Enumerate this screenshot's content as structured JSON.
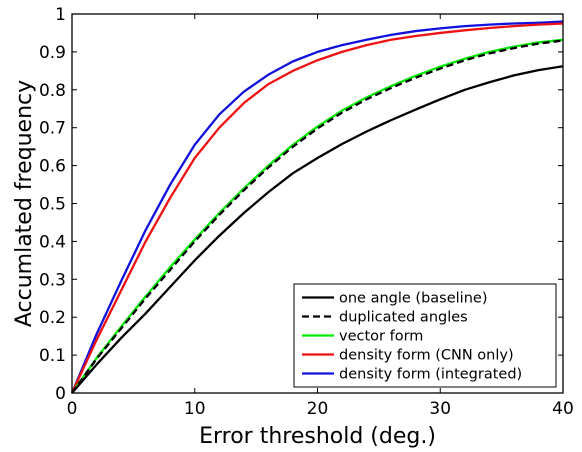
{
  "chart_data": {
    "type": "line",
    "title": "",
    "xlabel": "Error threshold (deg.)",
    "ylabel": "Accumlated frequency",
    "xlim": [
      0,
      40
    ],
    "ylim": [
      0,
      1
    ],
    "xticks": [
      0,
      10,
      20,
      30,
      40
    ],
    "yticks": [
      0,
      0.1,
      0.2,
      0.3,
      0.4,
      0.5,
      0.6,
      0.7,
      0.8,
      0.9,
      1
    ],
    "grid": false,
    "legend_position": "bottom-right",
    "series": [
      {
        "name": "one angle (baseline)",
        "color": "#000000",
        "dash": "solid",
        "x": [
          0,
          2,
          4,
          6,
          8,
          10,
          12,
          14,
          16,
          18,
          20,
          22,
          24,
          26,
          28,
          30,
          32,
          34,
          36,
          38,
          40
        ],
        "y": [
          0,
          0.075,
          0.145,
          0.21,
          0.28,
          0.35,
          0.415,
          0.475,
          0.53,
          0.58,
          0.62,
          0.657,
          0.69,
          0.72,
          0.748,
          0.775,
          0.8,
          0.82,
          0.838,
          0.852,
          0.862
        ]
      },
      {
        "name": "duplicated angles",
        "color": "#000000",
        "dash": "dashed",
        "x": [
          0,
          2,
          4,
          6,
          8,
          10,
          12,
          14,
          16,
          18,
          20,
          22,
          24,
          26,
          28,
          30,
          32,
          34,
          36,
          38,
          40
        ],
        "y": [
          0,
          0.09,
          0.17,
          0.25,
          0.325,
          0.4,
          0.47,
          0.535,
          0.595,
          0.65,
          0.698,
          0.74,
          0.775,
          0.805,
          0.832,
          0.856,
          0.878,
          0.896,
          0.91,
          0.922,
          0.93
        ]
      },
      {
        "name": "vector form",
        "color": "#00ee00",
        "dash": "solid",
        "x": [
          0,
          2,
          4,
          6,
          8,
          10,
          12,
          14,
          16,
          18,
          20,
          22,
          24,
          26,
          28,
          30,
          32,
          34,
          36,
          38,
          40
        ],
        "y": [
          0,
          0.092,
          0.175,
          0.255,
          0.332,
          0.405,
          0.475,
          0.54,
          0.6,
          0.655,
          0.703,
          0.745,
          0.78,
          0.81,
          0.837,
          0.861,
          0.882,
          0.9,
          0.914,
          0.925,
          0.932
        ]
      },
      {
        "name": "density form (CNN only)",
        "color": "#ee1111",
        "dash": "solid",
        "x": [
          0,
          2,
          4,
          6,
          8,
          10,
          12,
          14,
          16,
          18,
          20,
          22,
          24,
          26,
          28,
          30,
          32,
          34,
          36,
          38,
          40
        ],
        "y": [
          0,
          0.14,
          0.27,
          0.4,
          0.515,
          0.62,
          0.7,
          0.765,
          0.815,
          0.85,
          0.878,
          0.9,
          0.918,
          0.932,
          0.942,
          0.95,
          0.957,
          0.963,
          0.968,
          0.972,
          0.975
        ]
      },
      {
        "name": "density form (integrated)",
        "color": "#1111dd",
        "dash": "solid",
        "x": [
          0,
          2,
          4,
          6,
          8,
          10,
          12,
          14,
          16,
          18,
          20,
          22,
          24,
          26,
          28,
          30,
          32,
          34,
          36,
          38,
          40
        ],
        "y": [
          0,
          0.155,
          0.295,
          0.43,
          0.55,
          0.655,
          0.735,
          0.795,
          0.84,
          0.875,
          0.9,
          0.918,
          0.932,
          0.945,
          0.955,
          0.962,
          0.968,
          0.972,
          0.975,
          0.977,
          0.98
        ]
      }
    ]
  }
}
